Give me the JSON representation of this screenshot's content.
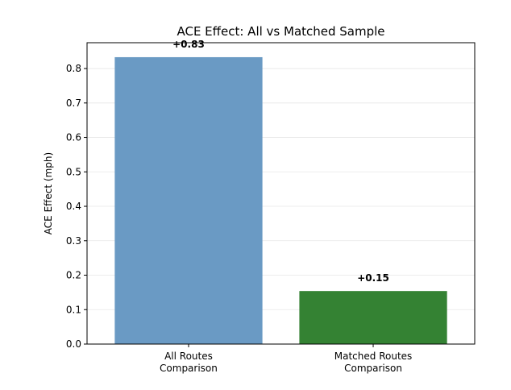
{
  "chart_data": {
    "type": "bar",
    "title": "ACE Effect: All vs Matched Sample",
    "xlabel": "",
    "ylabel": "ACE Effect (mph)",
    "categories": [
      [
        "All Routes",
        "Comparison"
      ],
      [
        "Matched Routes",
        "Comparison"
      ]
    ],
    "values": [
      0.833,
      0.154
    ],
    "data_labels": [
      "+0.83",
      "+0.15"
    ],
    "bar_colors": [
      "#6a9ac4",
      "#348233"
    ],
    "ylim": [
      0,
      0.875
    ],
    "yticks": [
      0.0,
      0.1,
      0.2,
      0.3,
      0.4,
      0.5,
      0.6,
      0.7,
      0.8
    ],
    "ytick_labels": [
      "0.0",
      "0.1",
      "0.2",
      "0.3",
      "0.4",
      "0.5",
      "0.6",
      "0.7",
      "0.8"
    ],
    "grid": "horizontal",
    "reference_line": {
      "y": 0,
      "style": "dashed"
    }
  }
}
